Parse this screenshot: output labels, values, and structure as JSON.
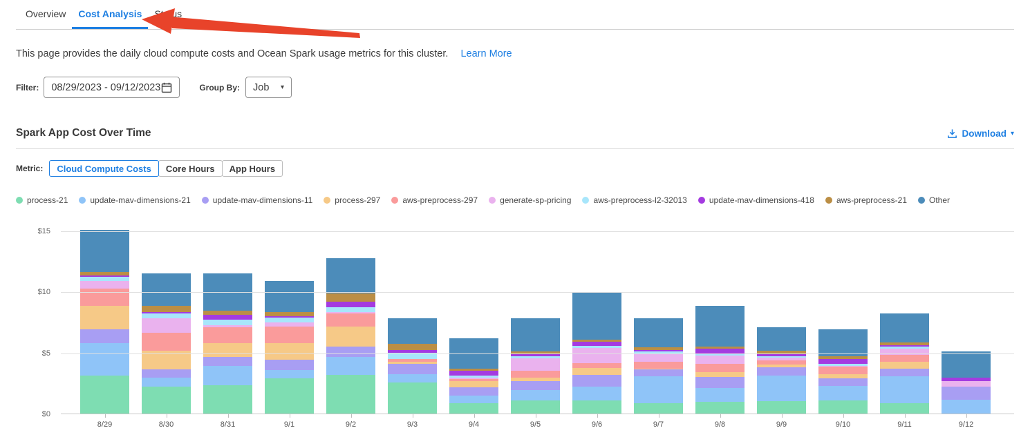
{
  "tabs": {
    "items": [
      {
        "label": "Overview",
        "active": false
      },
      {
        "label": "Cost Analysis",
        "active": true
      },
      {
        "label": "Status",
        "active": false
      }
    ]
  },
  "annotation": {
    "arrow_color": "#e8432a"
  },
  "intro": {
    "text": "This page provides the daily cloud compute costs and Ocean Spark usage metrics for this cluster.",
    "link": "Learn More"
  },
  "filter": {
    "label": "Filter:",
    "date_range": "08/29/2023  -  09/12/2023",
    "group_by_label": "Group By:",
    "group_by_value": "Job"
  },
  "section": {
    "title": "Spark App Cost Over Time",
    "download_label": "Download"
  },
  "metric": {
    "label": "Metric:",
    "buttons": [
      {
        "label": "Cloud Compute Costs",
        "active": true
      },
      {
        "label": "Core Hours",
        "active": false
      },
      {
        "label": "App Hours",
        "active": false
      }
    ]
  },
  "colors": {
    "accent_blue": "#1e7fe2",
    "arrow_red": "#e8432a"
  },
  "chart_data": {
    "type": "stacked-bar",
    "title": "Spark App Cost Over Time",
    "unit": "$",
    "grid": true,
    "legend_position": "top",
    "ylim": [
      0,
      15
    ],
    "y_ticks": [
      "$0",
      "$5",
      "$10",
      "$15"
    ],
    "categories": [
      "8/29",
      "8/30",
      "8/31",
      "9/1",
      "9/2",
      "9/3",
      "9/4",
      "9/5",
      "9/6",
      "9/7",
      "9/8",
      "9/9",
      "9/10",
      "9/11",
      "9/12"
    ],
    "series": [
      {
        "name": "process-21",
        "color": "#7eddb2",
        "values": [
          3.1,
          2.2,
          2.3,
          2.9,
          3.15,
          2.55,
          0.85,
          1.1,
          1.1,
          0.85,
          0.95,
          1.0,
          1.05,
          0.85,
          0.0
        ]
      },
      {
        "name": "update-mav-dimensions-21",
        "color": "#8fc4f8",
        "values": [
          2.7,
          0.75,
          1.6,
          0.65,
          1.5,
          0.65,
          0.65,
          0.8,
          1.1,
          2.2,
          1.15,
          2.1,
          1.2,
          2.2,
          1.15
        ]
      },
      {
        "name": "update-mav-dimensions-11",
        "color": "#a89ef3",
        "values": [
          1.1,
          0.7,
          0.75,
          0.85,
          0.85,
          0.85,
          0.65,
          0.75,
          0.95,
          0.55,
          0.9,
          0.7,
          0.65,
          0.65,
          1.05
        ]
      },
      {
        "name": "process-297",
        "color": "#f6c987",
        "values": [
          1.95,
          1.5,
          1.15,
          1.35,
          1.65,
          0.2,
          0.5,
          0.3,
          0.6,
          0.1,
          0.4,
          0.2,
          0.35,
          0.55,
          0.0
        ]
      },
      {
        "name": "aws-preprocess-297",
        "color": "#fa9b9b",
        "values": [
          1.4,
          1.45,
          1.3,
          1.4,
          1.05,
          0.2,
          0.2,
          0.55,
          0.4,
          0.55,
          0.7,
          0.38,
          0.6,
          0.55,
          0.0
        ]
      },
      {
        "name": "generate-sp-pricing",
        "color": "#eab2ee",
        "values": [
          0.6,
          1.2,
          0.15,
          0.3,
          0.1,
          0.05,
          0.12,
          1.05,
          1.25,
          0.6,
          0.65,
          0.2,
          0.05,
          0.5,
          0.45
        ]
      },
      {
        "name": "aws-preprocess-l2-32013",
        "color": "#a8e6fb",
        "values": [
          0.35,
          0.4,
          0.45,
          0.4,
          0.4,
          0.5,
          0.12,
          0.15,
          0.15,
          0.22,
          0.1,
          0.12,
          0.2,
          0.17,
          0.0
        ]
      },
      {
        "name": "update-mav-dimensions-418",
        "color": "#a43be0",
        "values": [
          0.12,
          0.12,
          0.4,
          0.12,
          0.5,
          0.2,
          0.42,
          0.17,
          0.32,
          0.12,
          0.45,
          0.2,
          0.38,
          0.15,
          0.3
        ]
      },
      {
        "name": "aws-preprocess-21",
        "color": "#bb8e45",
        "values": [
          0.28,
          0.5,
          0.35,
          0.38,
          0.65,
          0.5,
          0.15,
          0.25,
          0.2,
          0.27,
          0.22,
          0.25,
          0.22,
          0.22,
          0.0
        ]
      },
      {
        "name": "Other",
        "color": "#4c8cba",
        "values": [
          3.45,
          2.7,
          3.05,
          2.55,
          2.9,
          2.1,
          2.5,
          2.7,
          3.9,
          2.35,
          3.3,
          1.95,
          2.2,
          2.4,
          2.15
        ]
      }
    ]
  }
}
